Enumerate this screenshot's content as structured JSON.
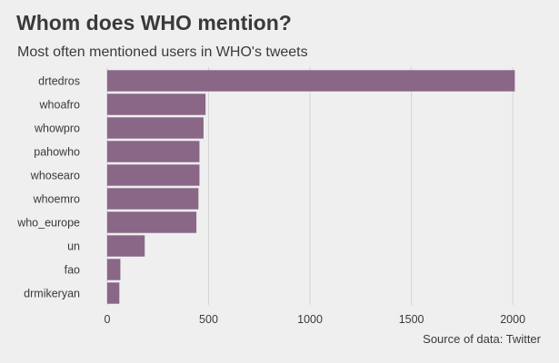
{
  "chart_data": {
    "type": "bar",
    "orientation": "horizontal",
    "title": "Whom does WHO mention?",
    "subtitle": "Most often mentioned users in WHO's tweets",
    "caption": "Source of data: Twitter",
    "categories": [
      "drtedros",
      "whoafro",
      "whowpro",
      "pahowho",
      "whosearo",
      "whoemro",
      "who_europe",
      "un",
      "fao",
      "drmikeryan"
    ],
    "values": [
      2010,
      485,
      475,
      455,
      455,
      450,
      440,
      185,
      65,
      60
    ],
    "xlim": [
      -40,
      2080
    ],
    "xticks": [
      0,
      500,
      1000,
      1500,
      2000
    ],
    "grid": true,
    "legend": "none",
    "bar_color": "#8a6687",
    "grid_color": "#d4d4d4",
    "background": "#efefef"
  }
}
